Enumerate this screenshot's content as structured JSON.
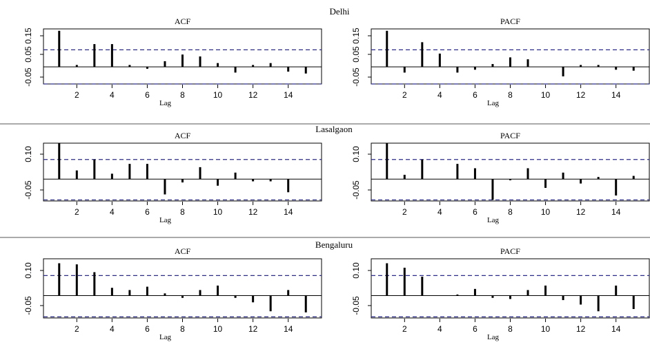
{
  "figure": {
    "lag_label": "Lag",
    "x_ticks": [
      2,
      4,
      6,
      8,
      10,
      12,
      14
    ]
  },
  "colors": {
    "confidence_band": "#2a2a8a",
    "bars": "#000000"
  },
  "chart_data": [
    {
      "region": "Delhi",
      "y_ticks": [
        "-0.05",
        "0.05",
        "0.15"
      ],
      "panels": [
        {
          "type": "bar",
          "title": "ACF",
          "xlabel": "Lag",
          "xlim": [
            0.5,
            15.5
          ],
          "ylim": [
            -0.09,
            0.2
          ],
          "confidence": [
            0.09,
            -0.09
          ],
          "lags": [
            1,
            2,
            3,
            4,
            5,
            6,
            7,
            8,
            9,
            10,
            11,
            12,
            13,
            14,
            15
          ],
          "values": [
            0.19,
            0.01,
            0.12,
            0.12,
            0.01,
            -0.01,
            0.03,
            0.065,
            0.055,
            0.02,
            -0.03,
            0.01,
            0.02,
            -0.025,
            -0.035
          ]
        },
        {
          "type": "bar",
          "title": "PACF",
          "xlabel": "Lag",
          "xlim": [
            0.5,
            15.5
          ],
          "ylim": [
            -0.09,
            0.2
          ],
          "confidence": [
            0.09,
            -0.09
          ],
          "lags": [
            1,
            2,
            3,
            4,
            5,
            6,
            7,
            8,
            9,
            10,
            11,
            12,
            13,
            14,
            15
          ],
          "values": [
            0.19,
            -0.03,
            0.13,
            0.07,
            -0.03,
            -0.015,
            0.015,
            0.05,
            0.04,
            0.0,
            -0.05,
            0.01,
            0.01,
            -0.015,
            -0.02
          ]
        }
      ]
    },
    {
      "region": "Lasalgaon",
      "y_ticks": [
        "-0.05",
        "0.10"
      ],
      "panels": [
        {
          "type": "bar",
          "title": "ACF",
          "xlabel": "Lag",
          "xlim": [
            0.5,
            15.5
          ],
          "ylim": [
            -0.1,
            0.165
          ],
          "confidence": [
            0.09,
            -0.095
          ],
          "lags": [
            1,
            2,
            3,
            4,
            5,
            6,
            7,
            8,
            9,
            10,
            11,
            12,
            13,
            14,
            15
          ],
          "values": [
            0.165,
            0.04,
            0.09,
            0.025,
            0.07,
            0.07,
            -0.07,
            -0.015,
            0.055,
            -0.03,
            0.03,
            -0.01,
            -0.01,
            -0.06,
            0.0
          ]
        },
        {
          "type": "bar",
          "title": "PACF",
          "xlabel": "Lag",
          "xlim": [
            0.5,
            15.5
          ],
          "ylim": [
            -0.1,
            0.165
          ],
          "confidence": [
            0.09,
            -0.095
          ],
          "lags": [
            1,
            2,
            3,
            4,
            5,
            6,
            7,
            8,
            9,
            10,
            11,
            12,
            13,
            14,
            15
          ],
          "values": [
            0.165,
            0.02,
            0.09,
            0.0,
            0.07,
            0.05,
            -0.095,
            -0.005,
            0.05,
            -0.04,
            0.03,
            -0.02,
            0.01,
            -0.075,
            0.015
          ]
        }
      ]
    },
    {
      "region": "Bengaluru",
      "y_ticks": [
        "-0.05",
        "0.10"
      ],
      "panels": [
        {
          "type": "bar",
          "title": "ACF",
          "xlabel": "Lag",
          "xlim": [
            0.5,
            15.5
          ],
          "ylim": [
            -0.1,
            0.165
          ],
          "confidence": [
            0.09,
            -0.095
          ],
          "lags": [
            1,
            2,
            3,
            4,
            5,
            6,
            7,
            8,
            9,
            10,
            11,
            12,
            13,
            14,
            15
          ],
          "values": [
            0.145,
            0.14,
            0.105,
            0.035,
            0.025,
            0.04,
            0.01,
            -0.01,
            0.025,
            0.045,
            -0.01,
            -0.03,
            -0.07,
            0.025,
            -0.075
          ]
        },
        {
          "type": "bar",
          "title": "PACF",
          "xlabel": "Lag",
          "xlim": [
            0.5,
            15.5
          ],
          "ylim": [
            -0.1,
            0.165
          ],
          "confidence": [
            0.09,
            -0.095
          ],
          "lags": [
            1,
            2,
            3,
            4,
            5,
            6,
            7,
            8,
            9,
            10,
            11,
            12,
            13,
            14,
            15
          ],
          "values": [
            0.145,
            0.125,
            0.085,
            0.0,
            0.005,
            0.03,
            -0.01,
            -0.015,
            0.025,
            0.045,
            -0.02,
            -0.04,
            -0.07,
            0.045,
            -0.06
          ]
        }
      ]
    }
  ]
}
